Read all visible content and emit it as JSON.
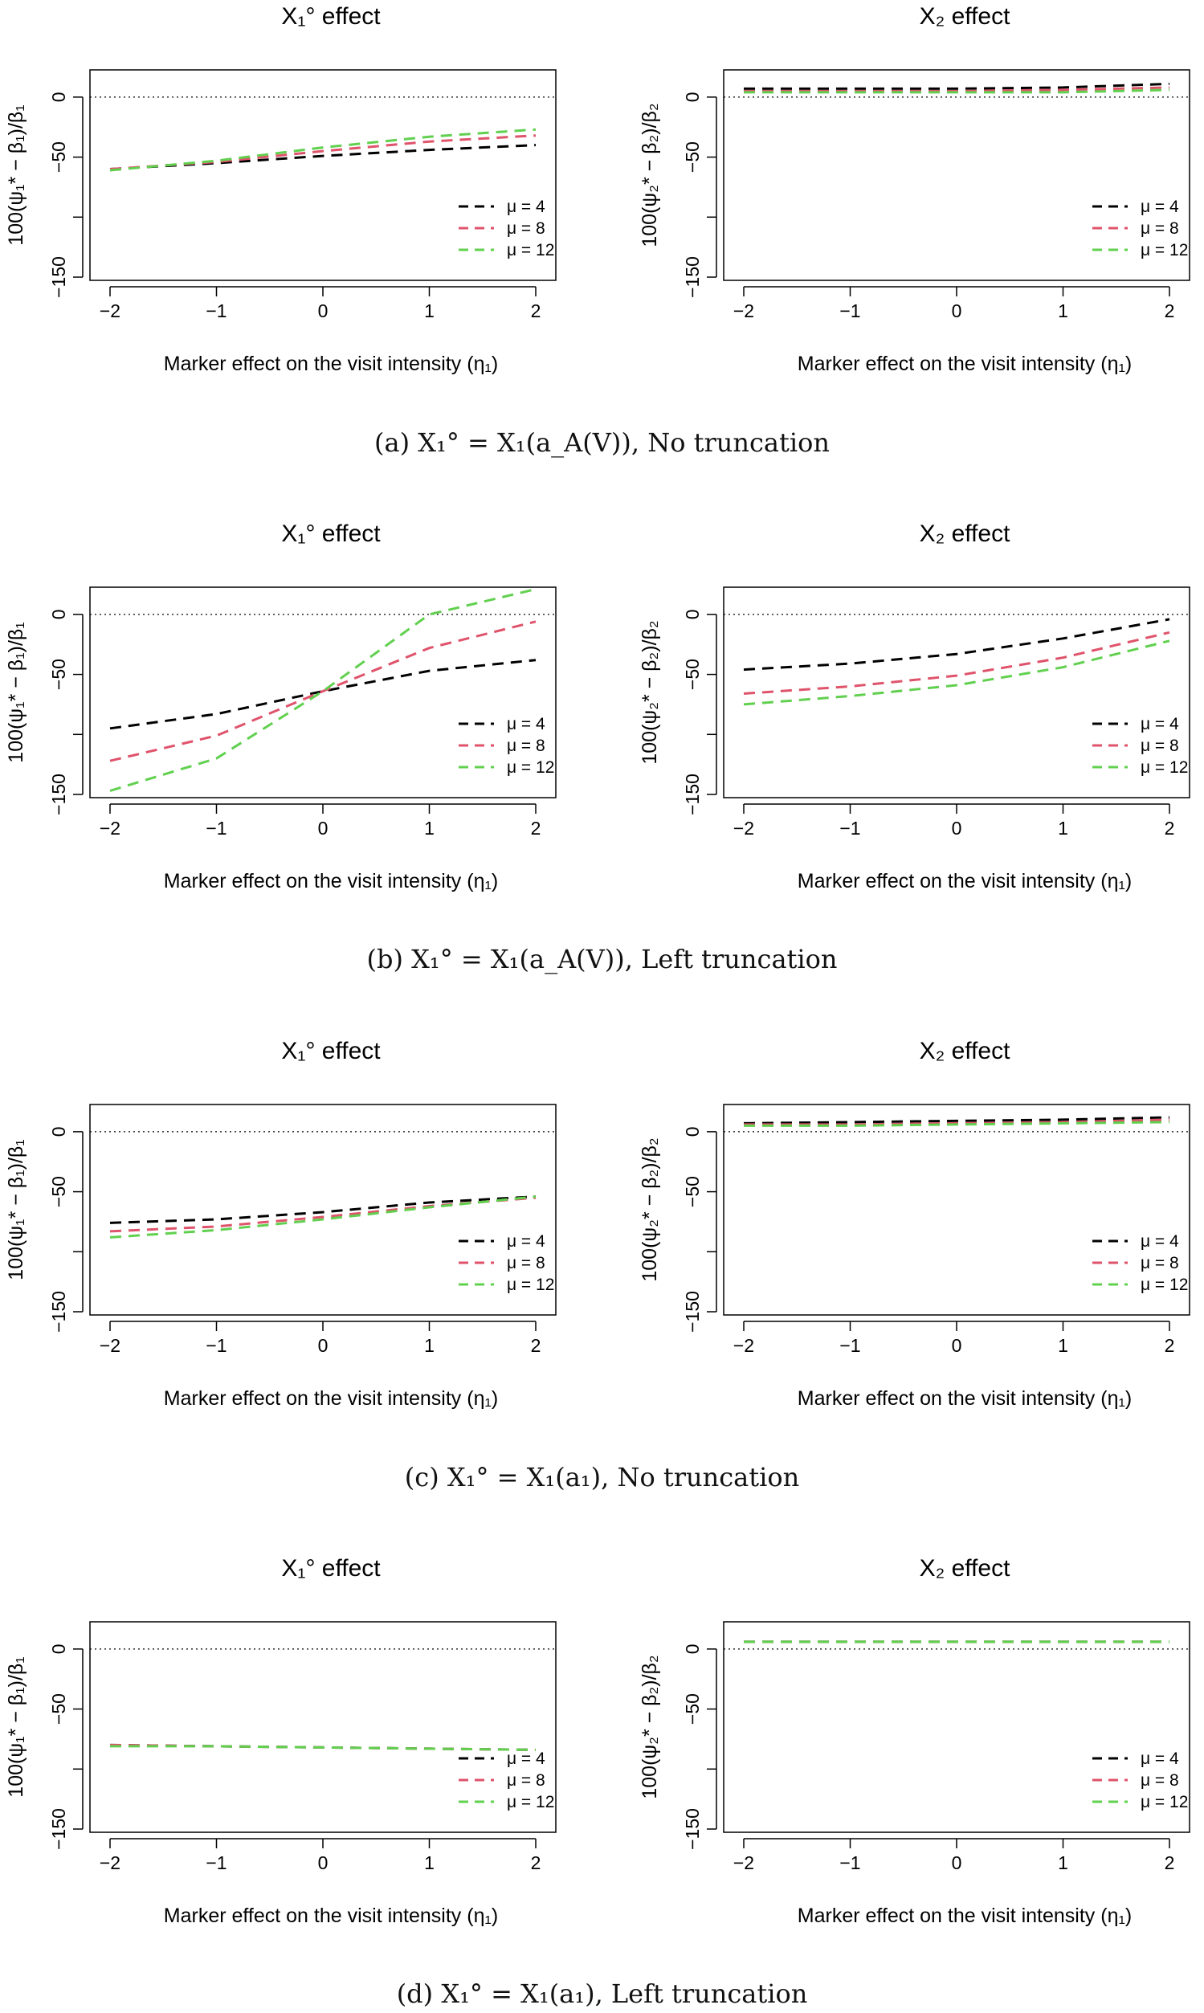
{
  "x_ticks": [
    "−2",
    "−1",
    "0",
    "1",
    "2"
  ],
  "y_ticks": [
    "0",
    "−50",
    "−150"
  ],
  "xlabel": "Marker effect on the visit intensity (η₁)",
  "legend": [
    "μ = 4",
    "μ = 8",
    "μ = 12"
  ],
  "series_colors": [
    "#000000",
    "#df536b",
    "#61d04f"
  ],
  "chart_data": [
    {
      "type": "line",
      "panel": "a",
      "side": "left",
      "title": "X₁° effect",
      "ylabel": "100(ψ₁* − β₁)/β₁",
      "xlim": [
        -2,
        2
      ],
      "ylim": [
        -150,
        20
      ],
      "hline": 0,
      "legend_position": "bottom-right",
      "x": [
        -2,
        -1,
        0,
        1,
        2
      ],
      "series": [
        {
          "name": "μ = 4",
          "values": [
            -60,
            -55,
            -49,
            -44,
            -40
          ]
        },
        {
          "name": "μ = 8",
          "values": [
            -60,
            -54,
            -45,
            -37,
            -32
          ]
        },
        {
          "name": "μ = 12",
          "values": [
            -61,
            -53,
            -42,
            -33,
            -27
          ]
        }
      ]
    },
    {
      "type": "line",
      "panel": "a",
      "side": "right",
      "title": "X₂ effect",
      "ylabel": "100(ψ₂* − β₂)/β₂",
      "xlim": [
        -2,
        2
      ],
      "ylim": [
        -150,
        20
      ],
      "hline": 0,
      "legend_position": "bottom-right",
      "x": [
        -2,
        -1,
        0,
        1,
        2
      ],
      "series": [
        {
          "name": "μ = 4",
          "values": [
            7,
            7,
            7,
            8,
            11
          ]
        },
        {
          "name": "μ = 8",
          "values": [
            5,
            5,
            5,
            6,
            8
          ]
        },
        {
          "name": "μ = 12",
          "values": [
            4,
            4,
            4,
            4,
            6
          ]
        }
      ]
    },
    {
      "type": "line",
      "panel": "b",
      "side": "left",
      "title": "X₁° effect",
      "ylabel": "100(ψ₁* − β₁)/β₁",
      "xlim": [
        -2,
        2
      ],
      "ylim": [
        -150,
        20
      ],
      "hline": 0,
      "legend_position": "bottom-right",
      "x": [
        -2,
        -1,
        0,
        1,
        2
      ],
      "series": [
        {
          "name": "μ = 4",
          "values": [
            -95,
            -83,
            -64,
            -47,
            -38
          ]
        },
        {
          "name": "μ = 8",
          "values": [
            -122,
            -101,
            -64,
            -28,
            -6
          ]
        },
        {
          "name": "μ = 12",
          "values": [
            -147,
            -120,
            -64,
            0,
            21
          ]
        }
      ]
    },
    {
      "type": "line",
      "panel": "b",
      "side": "right",
      "title": "X₂ effect",
      "ylabel": "100(ψ₂* − β₂)/β₂",
      "xlim": [
        -2,
        2
      ],
      "ylim": [
        -150,
        20
      ],
      "hline": 0,
      "legend_position": "bottom-right",
      "x": [
        -2,
        -1,
        0,
        1,
        2
      ],
      "series": [
        {
          "name": "μ = 4",
          "values": [
            -46,
            -41,
            -33,
            -20,
            -4
          ]
        },
        {
          "name": "μ = 8",
          "values": [
            -66,
            -60,
            -51,
            -36,
            -15
          ]
        },
        {
          "name": "μ = 12",
          "values": [
            -75,
            -68,
            -59,
            -44,
            -22
          ]
        }
      ]
    },
    {
      "type": "line",
      "panel": "c",
      "side": "left",
      "title": "X₁° effect",
      "ylabel": "100(ψ₁* − β₁)/β₁",
      "xlim": [
        -2,
        2
      ],
      "ylim": [
        -150,
        20
      ],
      "hline": 0,
      "legend_position": "bottom-right",
      "x": [
        -2,
        -1,
        0,
        1,
        2
      ],
      "series": [
        {
          "name": "μ = 4",
          "values": [
            -76,
            -73,
            -67,
            -59,
            -54
          ]
        },
        {
          "name": "μ = 8",
          "values": [
            -83,
            -79,
            -71,
            -62,
            -55
          ]
        },
        {
          "name": "μ = 12",
          "values": [
            -88,
            -82,
            -73,
            -63,
            -54
          ]
        }
      ]
    },
    {
      "type": "line",
      "panel": "c",
      "side": "right",
      "title": "X₂ effect",
      "ylabel": "100(ψ₂* − β₂)/β₂",
      "xlim": [
        -2,
        2
      ],
      "ylim": [
        -150,
        20
      ],
      "hline": 0,
      "legend_position": "bottom-right",
      "x": [
        -2,
        -1,
        0,
        1,
        2
      ],
      "series": [
        {
          "name": "μ = 4",
          "values": [
            7,
            8,
            9,
            10,
            12
          ]
        },
        {
          "name": "μ = 8",
          "values": [
            6,
            6,
            7,
            8,
            10
          ]
        },
        {
          "name": "μ = 12",
          "values": [
            5,
            5,
            6,
            7,
            8
          ]
        }
      ]
    },
    {
      "type": "line",
      "panel": "d",
      "side": "left",
      "title": "X₁° effect",
      "ylabel": "100(ψ₁* − β₁)/β₁",
      "xlim": [
        -2,
        2
      ],
      "ylim": [
        -150,
        20
      ],
      "hline": 0,
      "legend_position": "bottom-right",
      "x": [
        -2,
        -1,
        0,
        1,
        2
      ],
      "series": [
        {
          "name": "μ = 4",
          "values": [
            -80,
            -81,
            -82,
            -83,
            -84
          ]
        },
        {
          "name": "μ = 8",
          "values": [
            -80,
            -81,
            -82,
            -83,
            -84
          ]
        },
        {
          "name": "μ = 12",
          "values": [
            -81,
            -81,
            -82,
            -83,
            -84
          ]
        }
      ]
    },
    {
      "type": "line",
      "panel": "d",
      "side": "right",
      "title": "X₂ effect",
      "ylabel": "100(ψ₂* − β₂)/β₂",
      "xlim": [
        -2,
        2
      ],
      "ylim": [
        -150,
        20
      ],
      "hline": 0,
      "legend_position": "bottom-right",
      "x": [
        -2,
        -1,
        0,
        1,
        2
      ],
      "series": [
        {
          "name": "μ = 4",
          "values": [
            6,
            6,
            6,
            6,
            6
          ]
        },
        {
          "name": "μ = 8",
          "values": [
            6,
            6,
            6,
            6,
            6
          ]
        },
        {
          "name": "μ = 12",
          "values": [
            6,
            6,
            6,
            6,
            6
          ]
        }
      ]
    }
  ],
  "captions": {
    "a": "(a) X₁° = X₁(a_A(V)), No truncation",
    "b": "(b) X₁° = X₁(a_A(V)), Left truncation",
    "c": "(c) X₁° = X₁(a₁), No truncation",
    "d": "(d) X₁° = X₁(a₁), Left truncation"
  }
}
